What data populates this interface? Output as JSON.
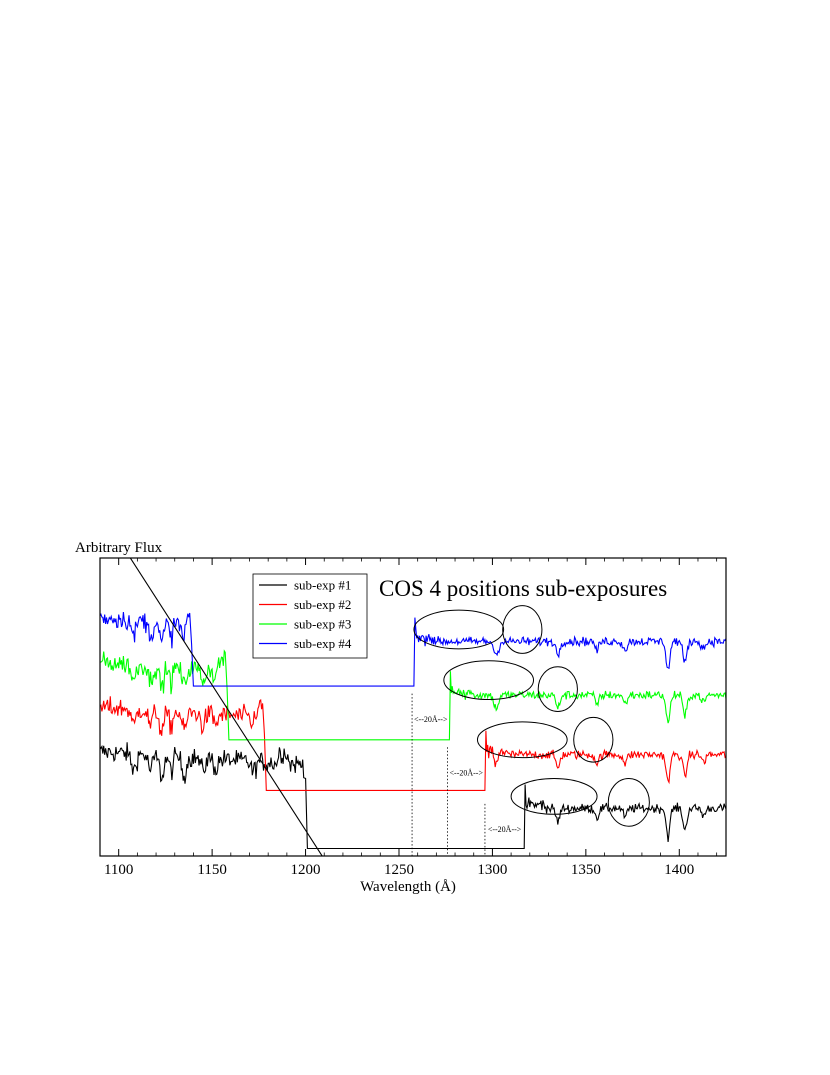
{
  "chart_data": {
    "type": "line",
    "title": "COS 4 positions sub-exposures",
    "xlabel": "Wavelength (Å)",
    "ylabel": "Arbitrary Flux",
    "xlim": [
      1090,
      1425
    ],
    "ylim": [
      0,
      10
    ],
    "xticks": [
      1100,
      1150,
      1200,
      1250,
      1300,
      1350,
      1400
    ],
    "grid": false,
    "legend_position": "top-left-center",
    "series": [
      {
        "name": "sub-exp #1",
        "color": "#000000",
        "gap": [
          1201,
          1317
        ],
        "gap_level": 0.25,
        "blue_level": 3.5,
        "red_level": 1.6,
        "blue_drop": 1183,
        "blue_end_peak": 1188,
        "red_start": 1318
      },
      {
        "name": "sub-exp #2",
        "color": "#ff0000",
        "gap": [
          1179,
          1296
        ],
        "gap_level": 2.2,
        "blue_level": 5.0,
        "red_level": 3.4,
        "blue_drop": 1178,
        "blue_end_peak": 1175,
        "red_start": 1297
      },
      {
        "name": "sub-exp #3",
        "color": "#00ff00",
        "gap": [
          1159,
          1277
        ],
        "gap_level": 3.9,
        "blue_level": 6.5,
        "red_level": 5.4,
        "blue_drop": 1157,
        "blue_end_peak": 1155,
        "red_start": 1278
      },
      {
        "name": "sub-exp #4",
        "color": "#0000ff",
        "gap": [
          1140,
          1258
        ],
        "gap_level": 5.7,
        "blue_level": 8.0,
        "red_level": 7.2,
        "blue_drop": 1140,
        "blue_end_peak": 1138,
        "red_start": 1259
      }
    ],
    "annotations": [
      {
        "label": "<--20Å-->",
        "x_from": 1257,
        "x_to": 1277,
        "y": 4.6
      },
      {
        "label": "<--20Å-->",
        "x_from": 1276,
        "x_to": 1296,
        "y": 2.8
      },
      {
        "label": "<--20Å-->",
        "x_from": 1296,
        "x_to": 1317,
        "y": 0.9
      }
    ],
    "ellipses": [
      {
        "cx": 1282,
        "cy": 7.6,
        "rx": 24,
        "ry": 0.65
      },
      {
        "cx": 1316,
        "cy": 7.6,
        "rx": 10.5,
        "ry": 0.8
      },
      {
        "cx": 1298,
        "cy": 5.9,
        "rx": 24,
        "ry": 0.65
      },
      {
        "cx": 1335,
        "cy": 5.6,
        "rx": 10.5,
        "ry": 0.75
      },
      {
        "cx": 1316,
        "cy": 3.9,
        "rx": 24,
        "ry": 0.6
      },
      {
        "cx": 1354,
        "cy": 3.9,
        "rx": 10.5,
        "ry": 0.75
      },
      {
        "cx": 1333,
        "cy": 2.0,
        "rx": 23,
        "ry": 0.6
      },
      {
        "cx": 1373,
        "cy": 1.8,
        "rx": 11,
        "ry": 0.8
      }
    ],
    "slope_line": {
      "x": [
        1097,
        1213
      ],
      "y": [
        10.9,
        -0.4
      ]
    }
  }
}
